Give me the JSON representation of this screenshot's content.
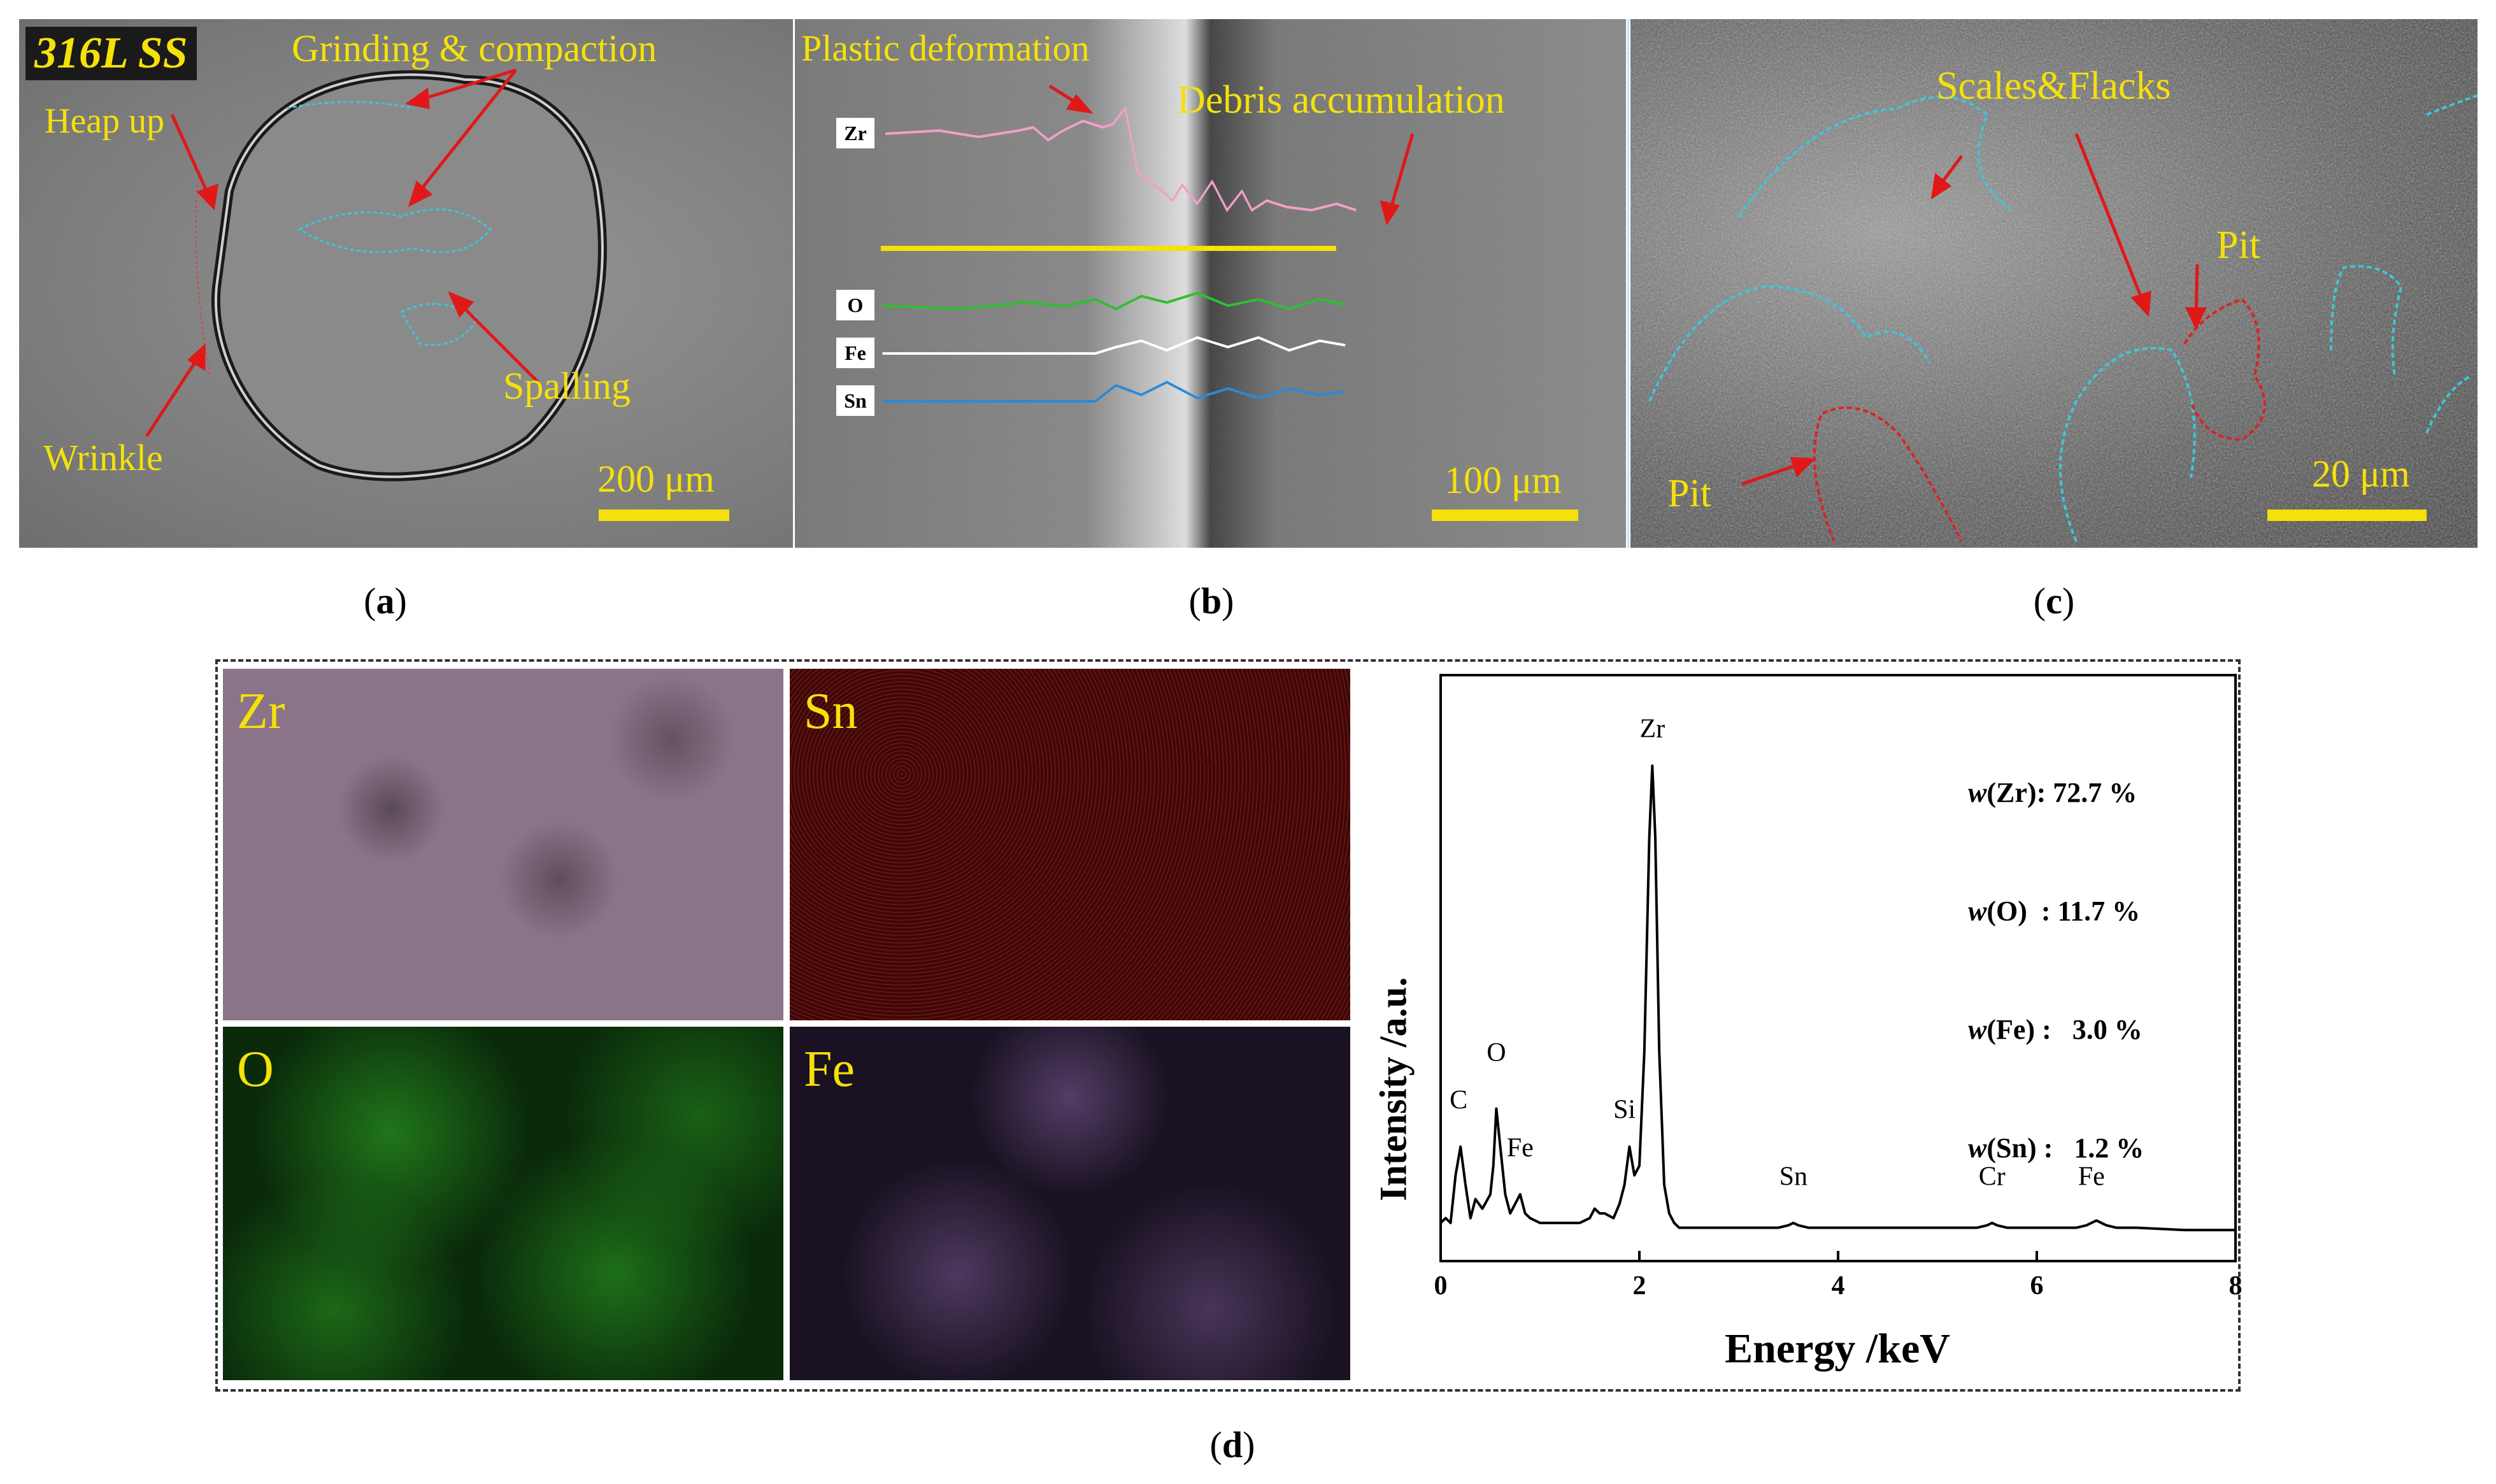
{
  "panel_a": {
    "tag": "316L SS",
    "labels": {
      "grinding": "Grinding & compaction",
      "heap": "Heap up",
      "spalling": "Spalling",
      "wrinkle": "Wrinkle"
    },
    "scale": "200 μm"
  },
  "panel_b": {
    "labels": {
      "plastic": "Plastic deformation",
      "debris": "Debris accumulation"
    },
    "linescan": [
      "Zr",
      "O",
      "Fe",
      "Sn"
    ],
    "scale": "100 μm"
  },
  "panel_c": {
    "labels": {
      "scales": "Scales&Flacks",
      "pit1": "Pit",
      "pit2": "Pit"
    },
    "scale": "20 μm"
  },
  "panel_d": {
    "maps": [
      {
        "label": "Zr",
        "color": "#9a7e94"
      },
      {
        "label": "Sn",
        "color": "#b83020"
      },
      {
        "label": "O",
        "color": "#2fb02a"
      },
      {
        "label": "Fe",
        "color": "#8a6aa6"
      }
    ],
    "composition": [
      {
        "el": "Zr",
        "val": ": 72.7 %"
      },
      {
        "el": "O",
        "val": "  : 11.7 %"
      },
      {
        "el": "Fe",
        "val": " :   3.0 %"
      },
      {
        "el": "Sn",
        "val": " :   1.2 %"
      }
    ]
  },
  "captions": {
    "a": "a",
    "b": "b",
    "c": "c",
    "d": "d"
  },
  "chart_data": {
    "type": "line",
    "xlabel": "Energy /keV",
    "ylabel": "Intensity /a.u.",
    "xlim": [
      0,
      8
    ],
    "xticks": [
      0,
      2,
      4,
      6,
      8
    ],
    "grid": false,
    "series": [
      {
        "x": [
          0,
          0.05,
          0.1,
          0.15,
          0.2,
          0.25,
          0.3,
          0.35,
          0.42,
          0.5,
          0.53,
          0.56,
          0.6,
          0.65,
          0.7,
          0.75,
          0.8,
          0.85,
          0.9,
          1.0,
          1.2,
          1.4,
          1.5,
          1.55,
          1.6,
          1.65,
          1.74,
          1.8,
          1.85,
          1.9,
          1.95,
          2.0,
          2.05,
          2.1,
          2.13,
          2.16,
          2.2,
          2.25,
          2.3,
          2.35,
          2.4,
          2.5,
          2.8,
          3.0,
          3.4,
          3.5,
          3.55,
          3.6,
          3.7,
          4.0,
          4.5,
          5.0,
          5.4,
          5.5,
          5.55,
          5.6,
          5.7,
          6.0,
          6.4,
          6.5,
          6.55,
          6.6,
          6.7,
          6.8,
          7.0,
          7.5,
          8.0
        ],
        "y": [
          4,
          5,
          4,
          14,
          20,
          12,
          5,
          9,
          7,
          10,
          16,
          28,
          20,
          10,
          6,
          8,
          10,
          6,
          5,
          4,
          4,
          4,
          5,
          7,
          6,
          6,
          5,
          8,
          12,
          20,
          14,
          16,
          40,
          85,
          100,
          85,
          40,
          12,
          6,
          4,
          3,
          3,
          3,
          3,
          3,
          3.5,
          4,
          3.5,
          3,
          3,
          3,
          3,
          3,
          3.5,
          4,
          3.5,
          3,
          3,
          3,
          3.5,
          4,
          4.5,
          3.5,
          3,
          3,
          2.5,
          2.5
        ]
      }
    ],
    "peak_labels": [
      {
        "text": "C",
        "x": 0.18,
        "y": 28
      },
      {
        "text": "O",
        "x": 0.56,
        "y": 38
      },
      {
        "text": "Fe",
        "x": 0.8,
        "y": 18
      },
      {
        "text": "Si",
        "x": 1.85,
        "y": 26
      },
      {
        "text": "Zr",
        "x": 2.13,
        "y": 106
      },
      {
        "text": "Sn",
        "x": 3.55,
        "y": 12
      },
      {
        "text": "Cr",
        "x": 5.55,
        "y": 12
      },
      {
        "text": "Fe",
        "x": 6.55,
        "y": 12
      }
    ]
  }
}
